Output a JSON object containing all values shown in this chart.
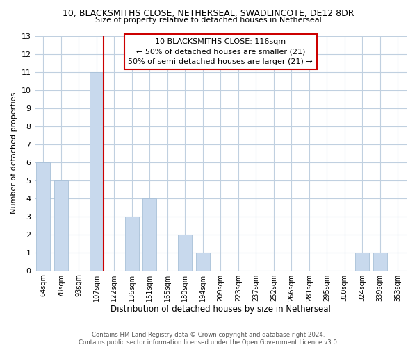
{
  "title": "10, BLACKSMITHS CLOSE, NETHERSEAL, SWADLINCOTE, DE12 8DR",
  "subtitle": "Size of property relative to detached houses in Netherseal",
  "xlabel": "Distribution of detached houses by size in Netherseal",
  "ylabel": "Number of detached properties",
  "bar_color": "#c8d9ed",
  "bar_edge_color": "#a8c0d8",
  "marker_line_color": "#cc0000",
  "background_color": "#ffffff",
  "grid_color": "#c0d0e0",
  "categories": [
    "64sqm",
    "78sqm",
    "93sqm",
    "107sqm",
    "122sqm",
    "136sqm",
    "151sqm",
    "165sqm",
    "180sqm",
    "194sqm",
    "209sqm",
    "223sqm",
    "237sqm",
    "252sqm",
    "266sqm",
    "281sqm",
    "295sqm",
    "310sqm",
    "324sqm",
    "339sqm",
    "353sqm"
  ],
  "values": [
    6,
    5,
    0,
    11,
    0,
    3,
    4,
    0,
    2,
    1,
    0,
    0,
    0,
    0,
    0,
    0,
    0,
    0,
    1,
    1,
    0
  ],
  "marker_bar_index": 3,
  "marker_label": "10 BLACKSMITHS CLOSE: 116sqm",
  "annotation_line1": "← 50% of detached houses are smaller (21)",
  "annotation_line2": "50% of semi-detached houses are larger (21) →",
  "ylim": [
    0,
    13
  ],
  "yticks": [
    0,
    1,
    2,
    3,
    4,
    5,
    6,
    7,
    8,
    9,
    10,
    11,
    12,
    13
  ],
  "footer_line1": "Contains HM Land Registry data © Crown copyright and database right 2024.",
  "footer_line2": "Contains public sector information licensed under the Open Government Licence v3.0."
}
